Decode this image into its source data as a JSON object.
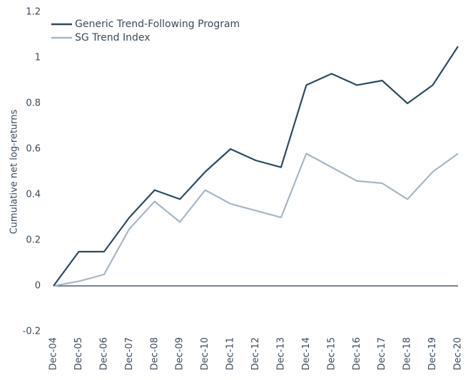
{
  "chart_data": {
    "type": "line",
    "y_label": "Cumulative net log-returns",
    "x": [
      "Dec-04",
      "Dec-05",
      "Dec-06",
      "Dec-07",
      "Dec-08",
      "Dec-09",
      "Dec-10",
      "Dec-11",
      "Dec-12",
      "Dec-13",
      "Dec-14",
      "Dec-15",
      "Dec-16",
      "Dec-17",
      "Dec-18",
      "Dec-19",
      "Dec-20"
    ],
    "series": [
      {
        "name": "Generic Trend-Following Program",
        "color": "#2b4a60",
        "values": [
          0,
          0.15,
          0.15,
          0.3,
          0.42,
          0.38,
          0.5,
          0.6,
          0.55,
          0.52,
          0.88,
          0.93,
          0.88,
          0.9,
          0.8,
          0.88,
          1.05
        ]
      },
      {
        "name": "SG Trend Index",
        "color": "#a6b6c6",
        "values": [
          0,
          0.02,
          0.05,
          0.25,
          0.37,
          0.28,
          0.42,
          0.36,
          0.33,
          0.3,
          0.58,
          0.52,
          0.46,
          0.45,
          0.38,
          0.5,
          0.58
        ]
      }
    ],
    "ylim": [
      -0.2,
      1.2
    ],
    "yticks": [
      -0.2,
      0,
      0.2,
      0.4,
      0.6,
      0.8,
      1,
      1.2
    ],
    "legend": "top-left"
  }
}
